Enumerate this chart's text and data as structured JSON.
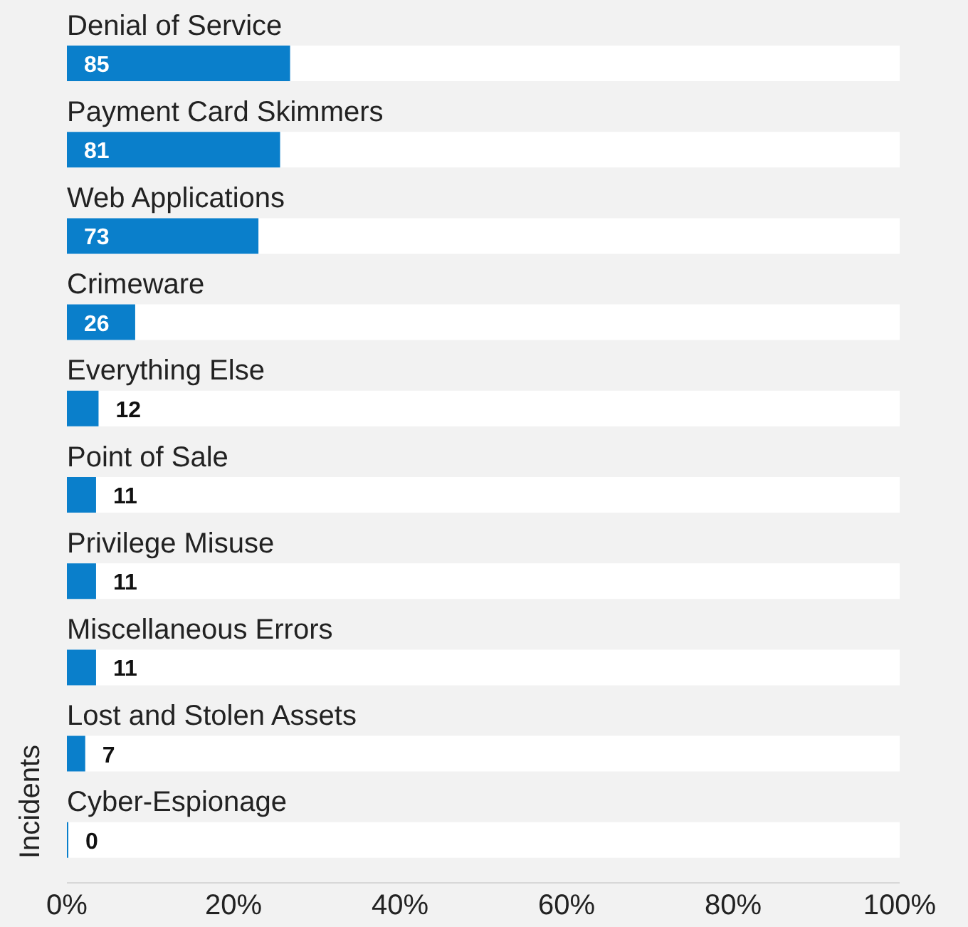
{
  "chart_data": {
    "type": "bar",
    "orientation": "horizontal",
    "ylabel": "Incidents",
    "categories": [
      "Denial of Service",
      "Payment Card Skimmers",
      "Web Applications",
      "Crimeware",
      "Everything Else",
      "Point of Sale",
      "Privilege Misuse",
      "Miscellaneous Errors",
      "Lost and Stolen Assets",
      "Cyber-Espionage"
    ],
    "values": [
      26.8,
      25.6,
      23.0,
      8.2,
      3.8,
      3.5,
      3.5,
      3.5,
      2.2,
      0
    ],
    "annotations": [
      "85",
      "81",
      "73",
      "26",
      "12",
      "11",
      "11",
      "11",
      "7",
      "0"
    ],
    "color": "#0a7fcb",
    "xlim": [
      0,
      100
    ],
    "xticks": [
      {
        "value": 0,
        "label": "0%"
      },
      {
        "value": 20,
        "label": "20%"
      },
      {
        "value": 40,
        "label": "40%"
      },
      {
        "value": 60,
        "label": "60%"
      },
      {
        "value": 80,
        "label": "80%"
      },
      {
        "value": 100,
        "label": "100%"
      }
    ],
    "grid": false,
    "legend": false
  }
}
